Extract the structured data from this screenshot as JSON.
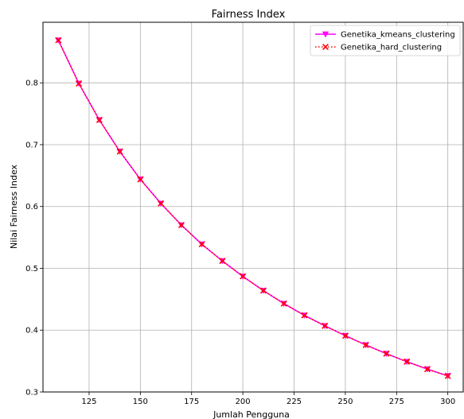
{
  "chart_data": {
    "type": "line",
    "title": "Fairness Index",
    "xlabel": "Jumlah Pengguna",
    "ylabel": "Nilai Fairness Index",
    "xlim": [
      102.5,
      307.5
    ],
    "ylim": [
      0.3,
      0.898
    ],
    "x_ticks": [
      125,
      150,
      175,
      200,
      225,
      250,
      275,
      300
    ],
    "y_ticks": [
      0.3,
      0.4,
      0.5,
      0.6,
      0.7,
      0.8
    ],
    "grid": true,
    "legend_position": "top-right",
    "x": [
      110,
      120,
      130,
      140,
      150,
      160,
      170,
      180,
      190,
      200,
      210,
      220,
      230,
      240,
      250,
      260,
      270,
      280,
      290,
      300
    ],
    "series": [
      {
        "name": "Genetika_kmeans_clustering",
        "color": "#ff00ff",
        "line_style": "solid",
        "marker": "triangle-down",
        "values": [
          0.869,
          0.799,
          0.74,
          0.689,
          0.644,
          0.605,
          0.57,
          0.539,
          0.512,
          0.487,
          0.464,
          0.443,
          0.424,
          0.407,
          0.391,
          0.376,
          0.362,
          0.349,
          0.337,
          0.326
        ]
      },
      {
        "name": "Genetika_hard_clustering",
        "color": "#ff0000",
        "line_style": "dotted",
        "marker": "x",
        "values": [
          0.869,
          0.799,
          0.74,
          0.689,
          0.644,
          0.605,
          0.57,
          0.539,
          0.512,
          0.487,
          0.464,
          0.443,
          0.424,
          0.407,
          0.391,
          0.376,
          0.362,
          0.349,
          0.337,
          0.326
        ]
      }
    ]
  }
}
